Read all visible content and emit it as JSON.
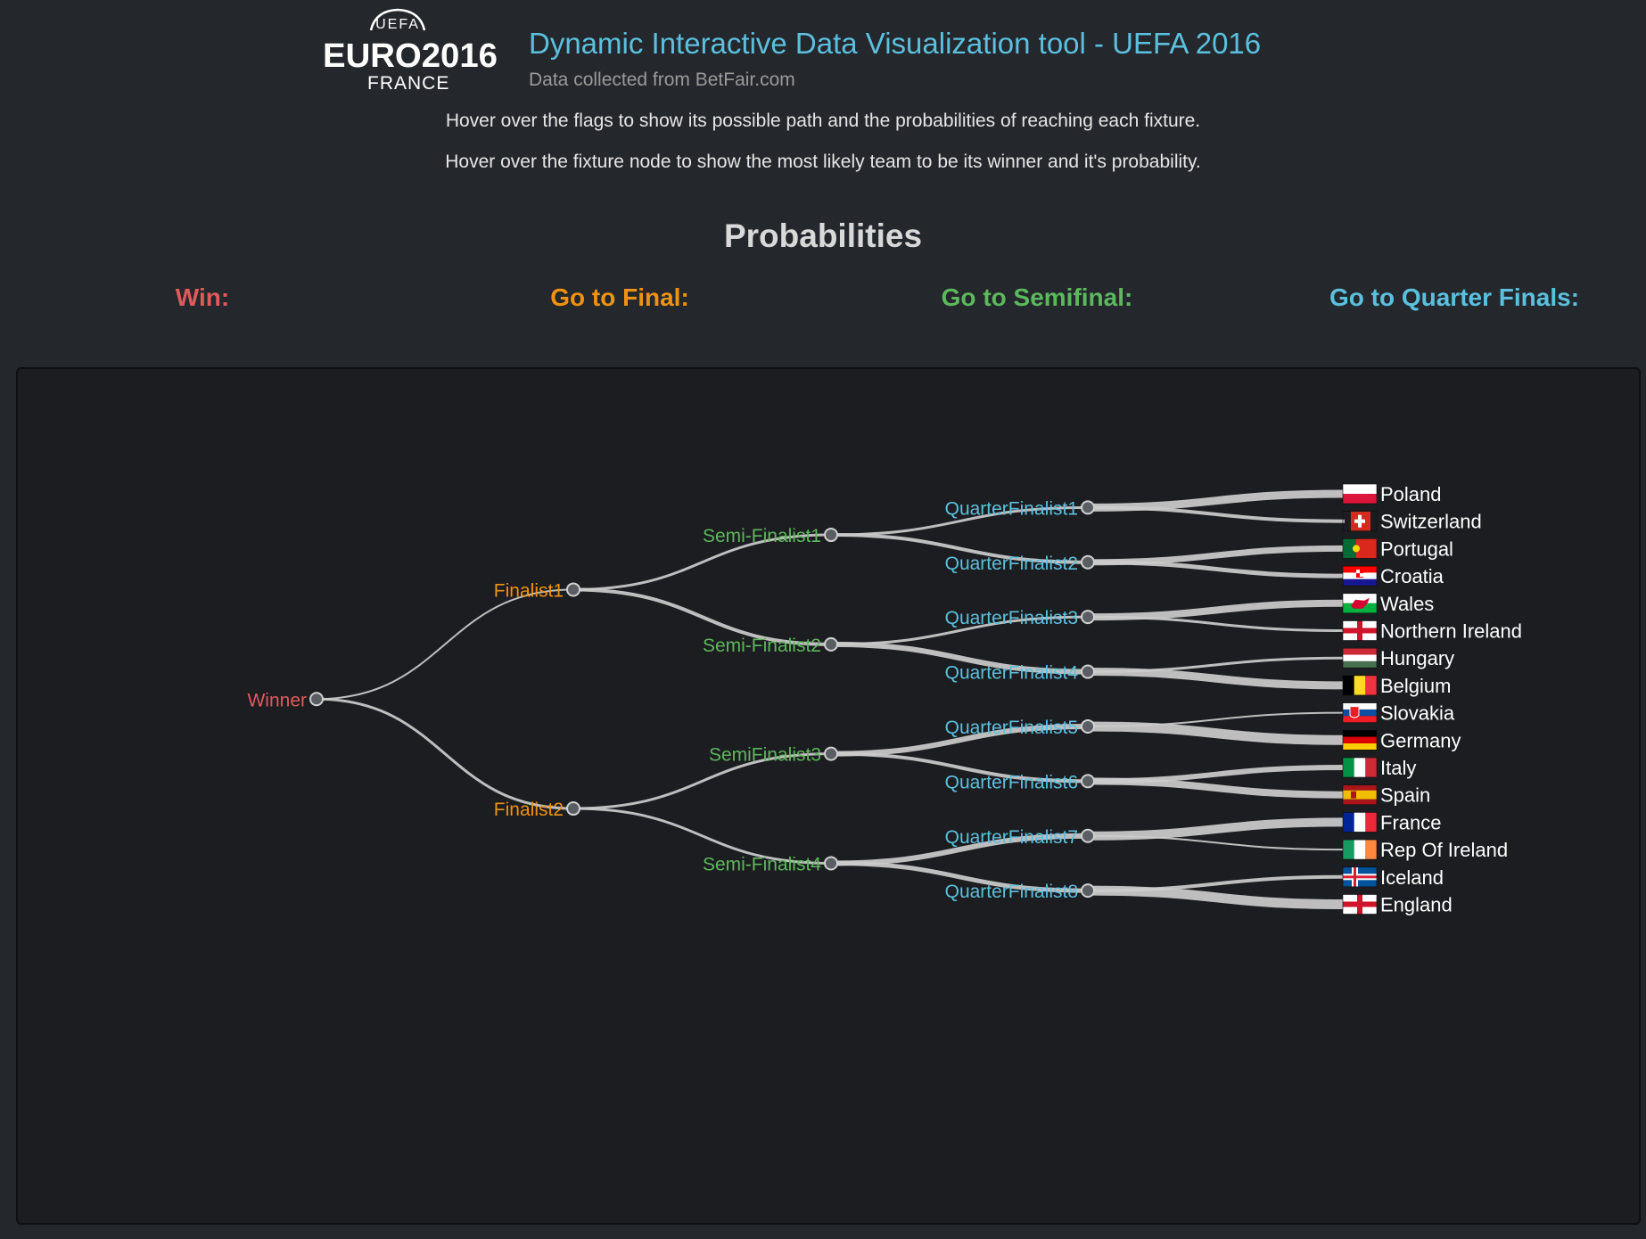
{
  "header": {
    "logo": {
      "top_text": "UEFA",
      "main_text": "EURO2016",
      "country_text": "FRANCE"
    },
    "title": "Dynamic Interactive Data Visualization tool - UEFA 2016",
    "subtitle": "Data collected from BetFair.com"
  },
  "instructions": [
    "Hover over the flags to show its possible path and the probabilities of reaching each fixture.",
    "Hover over the fixture node to show the most likely team to be its winner and it's probability."
  ],
  "probabilities": {
    "heading": "Probabilities",
    "labels": [
      {
        "text": "Win:",
        "color": "#e0595b"
      },
      {
        "text": "Go to Final:",
        "color": "#f0920f"
      },
      {
        "text": "Go to Semifinal:",
        "color": "#5cb85c"
      },
      {
        "text": "Go to Quarter Finals:",
        "color": "#5bc0de"
      }
    ]
  },
  "colors": {
    "winner": "#e0595b",
    "finalist": "#f0920f",
    "semifinalist": "#5cb85c",
    "quarterfinalist": "#5bc0de",
    "link": "#cccccc",
    "node_fill": "#5a5e63",
    "team_text": "#ffffff"
  },
  "bracket": {
    "winner": {
      "label": "Winner"
    },
    "finalists": [
      {
        "label": "Finalist1"
      },
      {
        "label": "Finalist2"
      }
    ],
    "semifinalists": [
      {
        "label": "Semi-Finalist1"
      },
      {
        "label": "Semi-Finalist2"
      },
      {
        "label": "SemiFinalist3"
      },
      {
        "label": "Semi-Finalist4"
      }
    ],
    "quarterfinalists": [
      {
        "label": "QuarterFinalist1",
        "teams": [
          {
            "name": "Poland",
            "flag": "poland-flag"
          },
          {
            "name": "Switzerland",
            "flag": "switzerland-flag"
          }
        ]
      },
      {
        "label": "QuarterFinalist2",
        "teams": [
          {
            "name": "Portugal",
            "flag": "portugal-flag"
          },
          {
            "name": "Croatia",
            "flag": "croatia-flag"
          }
        ]
      },
      {
        "label": "QuarterFinalist3",
        "teams": [
          {
            "name": "Wales",
            "flag": "wales-flag"
          },
          {
            "name": "Northern Ireland",
            "flag": "northern-ireland-flag"
          }
        ]
      },
      {
        "label": "QuarterFinalist4",
        "teams": [
          {
            "name": "Hungary",
            "flag": "hungary-flag"
          },
          {
            "name": "Belgium",
            "flag": "belgium-flag"
          }
        ]
      },
      {
        "label": "QuarterFinalist5",
        "teams": [
          {
            "name": "Slovakia",
            "flag": "slovakia-flag"
          },
          {
            "name": "Germany",
            "flag": "germany-flag"
          }
        ]
      },
      {
        "label": "QuarterFinalist6",
        "teams": [
          {
            "name": "Italy",
            "flag": "italy-flag"
          },
          {
            "name": "Spain",
            "flag": "spain-flag"
          }
        ]
      },
      {
        "label": "QuarterFinalist7",
        "teams": [
          {
            "name": "France",
            "flag": "france-flag"
          },
          {
            "name": "Rep Of Ireland",
            "flag": "ireland-flag"
          }
        ]
      },
      {
        "label": "QuarterFinalist8",
        "teams": [
          {
            "name": "Iceland",
            "flag": "iceland-flag"
          },
          {
            "name": "England",
            "flag": "england-flag"
          }
        ]
      }
    ]
  }
}
